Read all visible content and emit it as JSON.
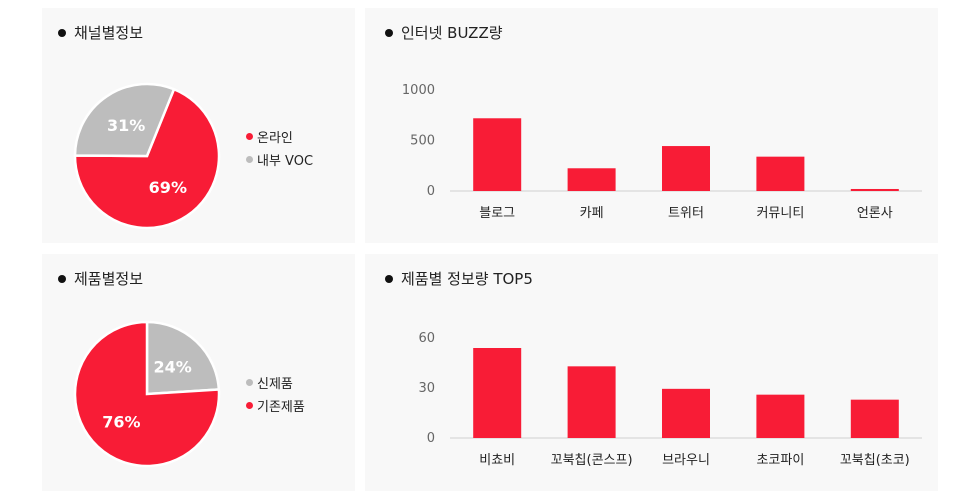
{
  "colors": {
    "primary": "#f81c36",
    "secondary": "#bdbdbd",
    "axis": "#d0d0d0",
    "tick": "#666666"
  },
  "panels": {
    "channel": {
      "title": "채널별정보"
    },
    "buzz": {
      "title": "인터넷 BUZZ량"
    },
    "product": {
      "title": "제품별정보"
    },
    "top5": {
      "title": "제품별 정보량 TOP5"
    }
  },
  "chart_data": [
    {
      "type": "pie",
      "title": "채널별정보",
      "slices": [
        {
          "label": "온라인",
          "value": 69,
          "display": "69%",
          "color": "#f81c36"
        },
        {
          "label": "내부 VOC",
          "value": 31,
          "display": "31%",
          "color": "#bdbdbd"
        }
      ],
      "legend": "right"
    },
    {
      "type": "bar",
      "title": "인터넷 BUZZ량",
      "categories": [
        "블로그",
        "카페",
        "트위터",
        "커뮤니티",
        "언론사"
      ],
      "values": [
        720,
        225,
        445,
        340,
        20
      ],
      "yticks": [
        0,
        500,
        1000
      ],
      "ylim": [
        0,
        1000
      ],
      "grid": false,
      "color": "#f81c36"
    },
    {
      "type": "pie",
      "title": "제품별정보",
      "slices": [
        {
          "label": "신제품",
          "value": 24,
          "display": "24%",
          "color": "#bdbdbd"
        },
        {
          "label": "기존제품",
          "value": 76,
          "display": "76%",
          "color": "#f81c36"
        }
      ],
      "legend": "right"
    },
    {
      "type": "bar",
      "title": "제품별 정보량 TOP5",
      "categories": [
        "비쵸비",
        "꼬북칩(콘스프)",
        "브라우니",
        "초코파이",
        "꼬북칩(초코)"
      ],
      "values": [
        54,
        43,
        29.5,
        26,
        23
      ],
      "yticks": [
        0,
        30,
        60
      ],
      "ylim": [
        0,
        60
      ],
      "grid": false,
      "color": "#f81c36"
    }
  ]
}
